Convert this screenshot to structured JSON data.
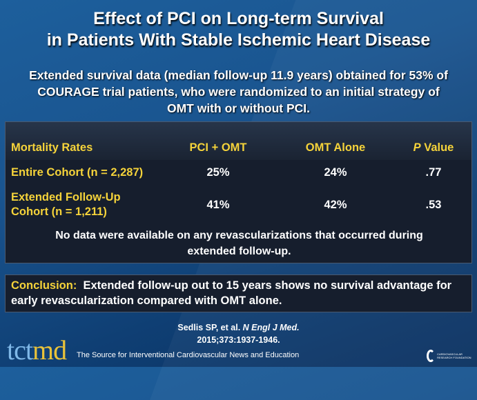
{
  "title": {
    "line1": "Effect of PCI on Long-term Survival",
    "line2": "in Patients With Stable Ischemic Heart Disease"
  },
  "subtitle": {
    "line1": "Extended survival data (median follow-up 11.9 years) obtained for 53% of",
    "line2": "COURAGE trial patients, who were randomized to an initial strategy of",
    "line3": "OMT with or without PCI."
  },
  "table": {
    "headers": [
      "Mortality Rates",
      "PCI + OMT",
      "OMT Alone",
      "P",
      "Value"
    ],
    "rows": [
      {
        "label1": "Entire Cohort (n = 2,287)",
        "label2": "",
        "pci": "25%",
        "omt": "24%",
        "p": ".77"
      },
      {
        "label1": "Extended Follow-Up",
        "label2": "Cohort (n = 1,211)",
        "pci": "41%",
        "omt": "42%",
        "p": ".53"
      }
    ],
    "note1": "No data were available on any revascularizations that occurred during",
    "note2": "extended follow-up."
  },
  "conclusion": {
    "label": "Conclusion:",
    "text": "Extended follow-up out to 15 years shows no survival advantage for early revascularization compared with OMT alone."
  },
  "citation": {
    "authors": "Sedlis SP, et al.",
    "journal": "N Engl J Med.",
    "details": "2015;373:1937-1946."
  },
  "footer": {
    "logo_a": "tct",
    "logo_b": "md",
    "tagline": "The Source for Interventional Cardiovascular News and Education",
    "crf": "CARDIOVASCULAR RESEARCH FOUNDATION"
  },
  "colors": {
    "accent": "#f5d33a",
    "panel": "#161e2d",
    "background": "#1a5590"
  }
}
